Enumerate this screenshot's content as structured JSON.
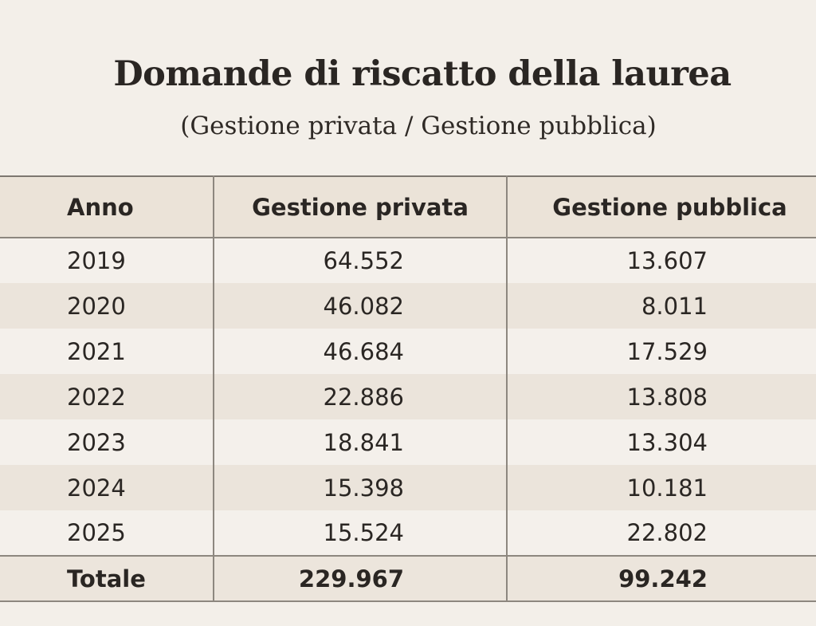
{
  "title": "Domande di riscatto della laurea",
  "subtitle": "(Gestione privata / Gestione pubblica)",
  "chart_data": {
    "type": "table",
    "title": "Domande di riscatto della laurea",
    "subtitle": "(Gestione privata / Gestione pubblica)",
    "columns": [
      "Anno",
      "Gestione privata",
      "Gestione pubblica"
    ],
    "rows": [
      [
        "2019",
        "64.552",
        "13.607"
      ],
      [
        "2020",
        "46.082",
        "8.011"
      ],
      [
        "2021",
        "46.684",
        "17.529"
      ],
      [
        "2022",
        "22.886",
        "13.808"
      ],
      [
        "2023",
        "18.841",
        "13.304"
      ],
      [
        "2024",
        "15.398",
        "10.181"
      ],
      [
        "2025",
        "15.524",
        "22.802"
      ]
    ],
    "total": [
      "Totale",
      "229.967",
      "99.242"
    ]
  }
}
